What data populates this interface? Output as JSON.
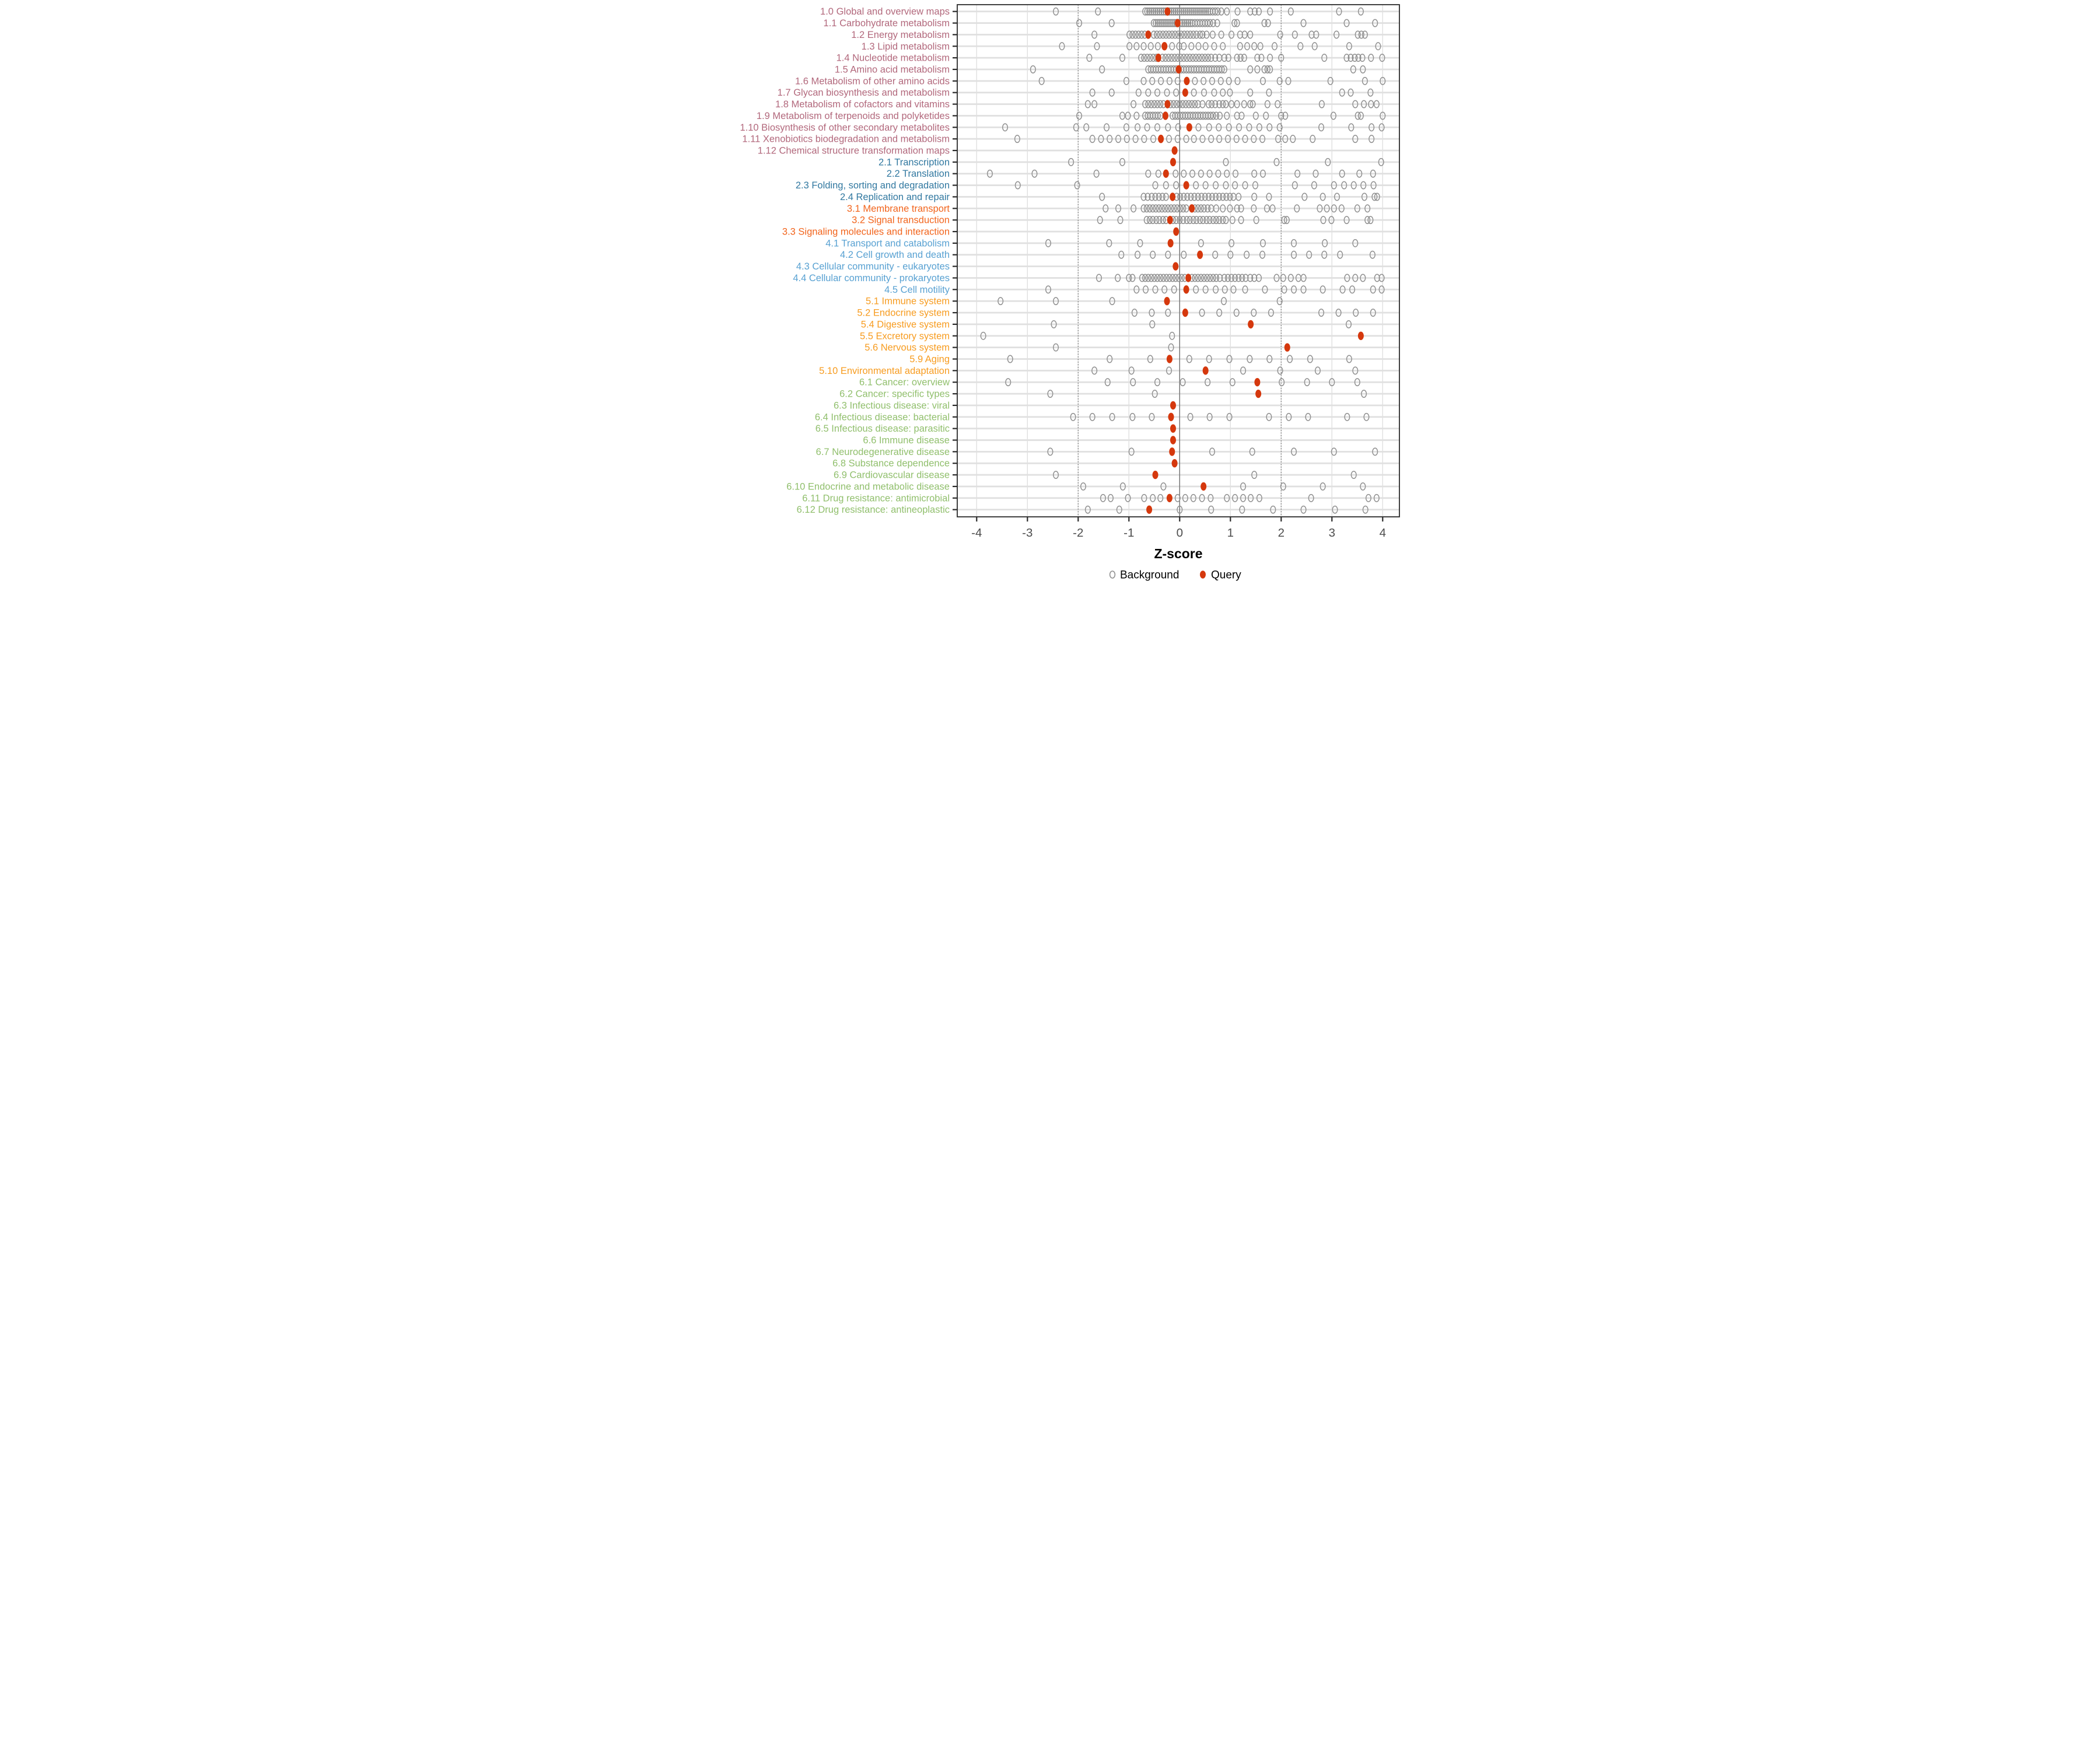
{
  "chart_data": {
    "type": "scatter",
    "title": "",
    "xlabel": "Z-score",
    "ylabel": "",
    "xlim": [
      -4.38,
      4.33
    ],
    "xticks": [
      -4,
      -3,
      -2,
      -1,
      0,
      1,
      2,
      3,
      4
    ],
    "grid": "on",
    "reference_lines": {
      "solid_at": 0,
      "dashed_at": [
        -2,
        2
      ]
    },
    "legend_position": "bottom",
    "legend": [
      {
        "label": "Background",
        "marker": "open-circle",
        "color": "#909090"
      },
      {
        "label": "Query",
        "marker": "filled-circle",
        "color": "#d5380d"
      }
    ],
    "colors": {
      "panel_border": "#2b2b2b",
      "grid": "#e0e0e0",
      "reference": "#707070",
      "tick_label": "#4d4d4d",
      "axis_title": "#000000",
      "background_dot": "#909090",
      "query_dot": "#d5380d",
      "group_colors": {
        "1": "#b2687c",
        "2": "#3178a0",
        "3": "#f2641c",
        "4": "#58a1d2",
        "5": "#f79c20",
        "6": "#90bf6c"
      }
    },
    "rows": [
      {
        "label": "1.0 Global and overview maps",
        "group": "1",
        "query": -0.24,
        "background": [
          -2.44,
          -1.61,
          -0.68,
          -0.64,
          -0.6,
          -0.56,
          -0.52,
          -0.48,
          -0.44,
          -0.4,
          -0.36,
          -0.32,
          -0.28,
          -0.2,
          -0.16,
          -0.12,
          -0.08,
          -0.04,
          0,
          0.04,
          0.08,
          0.12,
          0.16,
          0.2,
          0.24,
          0.28,
          0.32,
          0.36,
          0.4,
          0.44,
          0.48,
          0.52,
          0.56,
          0.6,
          0.65,
          0.7,
          0.75,
          0.82,
          0.93,
          1.14,
          1.39,
          1.48,
          1.56,
          1.78,
          2.19,
          3.14,
          3.57
        ]
      },
      {
        "label": "1.1 Carbohydrate metabolism",
        "group": "1",
        "query": -0.04,
        "background": [
          -1.98,
          -1.34,
          -0.51,
          -0.47,
          -0.43,
          -0.39,
          -0.35,
          -0.31,
          -0.27,
          -0.23,
          -0.19,
          -0.15,
          -0.11,
          -0.07,
          0.01,
          0.05,
          0.09,
          0.13,
          0.17,
          0.21,
          0.25,
          0.3,
          0.35,
          0.4,
          0.45,
          0.5,
          0.55,
          0.6,
          0.66,
          0.74,
          1.08,
          1.13,
          1.67,
          1.74,
          2.44,
          3.29,
          3.85
        ]
      },
      {
        "label": "1.2 Energy metabolism",
        "group": "1",
        "query": -0.62,
        "background": [
          -1.68,
          -0.99,
          -0.93,
          -0.87,
          -0.81,
          -0.75,
          -0.69,
          -0.51,
          -0.45,
          -0.39,
          -0.33,
          -0.27,
          -0.21,
          -0.15,
          -0.09,
          -0.03,
          0.03,
          0.09,
          0.15,
          0.21,
          0.27,
          0.33,
          0.4,
          0.45,
          0.53,
          0.65,
          0.82,
          1.02,
          1.19,
          1.28,
          1.39,
          1.98,
          2.27,
          2.6,
          2.69,
          3.09,
          3.51,
          3.58,
          3.65
        ]
      },
      {
        "label": "1.3 Lipid metabolism",
        "group": "1",
        "query": -0.3,
        "background": [
          -2.32,
          -1.63,
          -0.99,
          -0.85,
          -0.71,
          -0.57,
          -0.43,
          -0.15,
          -0.01,
          0.08,
          0.23,
          0.37,
          0.51,
          0.68,
          0.85,
          1.19,
          1.33,
          1.47,
          1.59,
          1.87,
          2.38,
          2.66,
          3.34,
          3.91
        ]
      },
      {
        "label": "1.4 Nucleotide metabolism",
        "group": "1",
        "query": -0.42,
        "background": [
          -1.78,
          -1.13,
          -0.76,
          -0.7,
          -0.64,
          -0.58,
          -0.52,
          -0.46,
          -0.34,
          -0.28,
          -0.22,
          -0.16,
          -0.1,
          -0.04,
          0.02,
          0.08,
          0.14,
          0.2,
          0.26,
          0.32,
          0.38,
          0.44,
          0.5,
          0.56,
          0.62,
          0.7,
          0.78,
          0.88,
          0.96,
          1.13,
          1.2,
          1.27,
          1.53,
          1.61,
          1.78,
          2.0,
          2.85,
          3.29,
          3.37,
          3.45,
          3.52,
          3.6,
          3.77,
          3.99
        ]
      },
      {
        "label": "1.5 Amino acid metabolism",
        "group": "1",
        "query": -0.02,
        "background": [
          -2.89,
          -1.53,
          -0.62,
          -0.57,
          -0.52,
          -0.47,
          -0.42,
          -0.37,
          -0.32,
          -0.27,
          -0.22,
          -0.17,
          -0.12,
          -0.07,
          0.03,
          0.08,
          0.13,
          0.18,
          0.23,
          0.28,
          0.33,
          0.38,
          0.43,
          0.48,
          0.53,
          0.58,
          0.63,
          0.68,
          0.73,
          0.78,
          0.83,
          0.88,
          1.39,
          1.53,
          1.67,
          1.73,
          1.78,
          3.42,
          3.61
        ]
      },
      {
        "label": "1.6 Metabolism of other amino acids",
        "group": "1",
        "query": 0.14,
        "background": [
          -2.72,
          -1.05,
          -0.71,
          -0.54,
          -0.37,
          -0.2,
          -0.04,
          0.3,
          0.47,
          0.64,
          0.81,
          0.97,
          1.14,
          1.64,
          1.97,
          2.14,
          2.97,
          3.65,
          4.0
        ]
      },
      {
        "label": "1.7 Glycan biosynthesis and metabolism",
        "group": "1",
        "query": 0.11,
        "background": [
          -1.72,
          -1.34,
          -0.81,
          -0.62,
          -0.44,
          -0.25,
          -0.07,
          0.28,
          0.48,
          0.68,
          0.85,
          0.99,
          1.39,
          1.76,
          3.2,
          3.37,
          3.76
        ]
      },
      {
        "label": "1.8 Metabolism of cofactors and vitamins",
        "group": "1",
        "query": -0.24,
        "background": [
          -1.81,
          -1.68,
          -0.91,
          -0.68,
          -0.62,
          -0.56,
          -0.5,
          -0.44,
          -0.38,
          -0.32,
          -0.18,
          -0.12,
          -0.06,
          0,
          0.06,
          0.12,
          0.18,
          0.24,
          0.3,
          0.36,
          0.45,
          0.57,
          0.63,
          0.7,
          0.78,
          0.85,
          0.91,
          1.02,
          1.13,
          1.27,
          1.39,
          1.44,
          1.73,
          1.93,
          2.8,
          3.46,
          3.63,
          3.77,
          3.88
        ]
      },
      {
        "label": "1.9 Metabolism of terpenoids and polyketides",
        "group": "1",
        "query": -0.28,
        "background": [
          -1.98,
          -1.13,
          -1.02,
          -0.85,
          -0.68,
          -0.63,
          -0.58,
          -0.53,
          -0.48,
          -0.43,
          -0.38,
          -0.14,
          -0.09,
          -0.04,
          0.01,
          0.06,
          0.11,
          0.16,
          0.21,
          0.26,
          0.31,
          0.36,
          0.41,
          0.46,
          0.51,
          0.56,
          0.61,
          0.66,
          0.72,
          0.79,
          0.93,
          1.13,
          1.22,
          1.5,
          1.7,
          2.0,
          2.08,
          3.03,
          3.51,
          3.57,
          4.0
        ]
      },
      {
        "label": "1.10 Biosynthesis of other secondary metabolites",
        "group": "1",
        "query": 0.19,
        "background": [
          -3.44,
          -2.04,
          -1.84,
          -1.44,
          -1.05,
          -0.83,
          -0.64,
          -0.44,
          -0.23,
          -0.03,
          0.37,
          0.58,
          0.77,
          0.97,
          1.17,
          1.37,
          1.57,
          1.77,
          1.97,
          2.79,
          3.38,
          3.78,
          3.98
        ]
      },
      {
        "label": "1.11 Xenobiotics biodegradation and metabolism",
        "group": "1",
        "query": -0.37,
        "background": [
          -3.2,
          -1.72,
          -1.55,
          -1.38,
          -1.21,
          -1.04,
          -0.87,
          -0.7,
          -0.52,
          -0.21,
          -0.04,
          0.13,
          0.28,
          0.45,
          0.62,
          0.78,
          0.95,
          1.12,
          1.29,
          1.46,
          1.63,
          1.94,
          2.08,
          2.23,
          2.62,
          3.46,
          3.78
        ]
      },
      {
        "label": "1.12 Chemical structure transformation maps",
        "group": "1",
        "query": -0.1,
        "background": []
      },
      {
        "label": "2.1 Transcription",
        "group": "2",
        "query": -0.13,
        "background": [
          -2.14,
          -1.13,
          0.91,
          1.91,
          2.92,
          3.97
        ]
      },
      {
        "label": "2.2 Translation",
        "group": "2",
        "query": -0.27,
        "background": [
          -3.74,
          -2.86,
          -1.64,
          -0.62,
          -0.42,
          -0.08,
          0.08,
          0.25,
          0.42,
          0.59,
          0.76,
          0.93,
          1.1,
          1.47,
          1.64,
          2.32,
          2.68,
          3.2,
          3.54,
          3.81
        ]
      },
      {
        "label": "2.3 Folding, sorting and degradation",
        "group": "2",
        "query": 0.13,
        "background": [
          -3.19,
          -2.02,
          -0.48,
          -0.27,
          -0.07,
          0.32,
          0.51,
          0.71,
          0.91,
          1.09,
          1.29,
          1.49,
          2.27,
          2.65,
          3.04,
          3.24,
          3.43,
          3.62,
          3.82
        ]
      },
      {
        "label": "2.4 Replication and repair",
        "group": "2",
        "query": -0.14,
        "background": [
          -1.53,
          -0.71,
          -0.63,
          -0.55,
          -0.48,
          -0.41,
          -0.34,
          -0.27,
          -0.06,
          0.01,
          0.08,
          0.15,
          0.22,
          0.29,
          0.36,
          0.43,
          0.5,
          0.57,
          0.64,
          0.71,
          0.78,
          0.85,
          0.92,
          0.99,
          1.06,
          1.16,
          1.47,
          1.76,
          2.46,
          2.82,
          3.1,
          3.64,
          3.84,
          3.89
        ]
      },
      {
        "label": "3.1 Membrane transport",
        "group": "3",
        "query": 0.24,
        "background": [
          -1.46,
          -1.21,
          -0.91,
          -0.71,
          -0.65,
          -0.59,
          -0.53,
          -0.47,
          -0.41,
          -0.35,
          -0.29,
          -0.23,
          -0.17,
          -0.11,
          -0.05,
          0.01,
          0.07,
          0.13,
          0.3,
          0.36,
          0.42,
          0.48,
          0.55,
          0.62,
          0.72,
          0.85,
          0.99,
          1.13,
          1.21,
          1.46,
          1.72,
          1.83,
          2.31,
          2.76,
          2.9,
          3.04,
          3.19,
          3.5,
          3.7
        ]
      },
      {
        "label": "3.2 Signal transduction",
        "group": "3",
        "query": -0.19,
        "background": [
          -1.57,
          -1.17,
          -0.65,
          -0.59,
          -0.53,
          -0.46,
          -0.4,
          -0.33,
          -0.27,
          -0.13,
          -0.07,
          0.0,
          0.07,
          0.14,
          0.2,
          0.27,
          0.33,
          0.4,
          0.46,
          0.53,
          0.59,
          0.66,
          0.72,
          0.78,
          0.85,
          0.91,
          1.04,
          1.21,
          1.51,
          2.06,
          2.11,
          2.83,
          2.99,
          3.29,
          3.7,
          3.76
        ]
      },
      {
        "label": "3.3 Signaling molecules and interaction",
        "group": "3",
        "query": -0.07,
        "background": []
      },
      {
        "label": "4.1 Transport and catabolism",
        "group": "4",
        "query": -0.18,
        "background": [
          -2.59,
          -1.39,
          -0.78,
          0.42,
          1.02,
          1.64,
          2.25,
          2.86,
          3.46
        ]
      },
      {
        "label": "4.2 Cell growth and death",
        "group": "4",
        "query": 0.4,
        "background": [
          -1.15,
          -0.83,
          -0.53,
          -0.23,
          0.08,
          0.7,
          1.0,
          1.32,
          1.63,
          2.25,
          2.55,
          2.85,
          3.16,
          3.8
        ]
      },
      {
        "label": "4.3 Cellular community - eukaryotes",
        "group": "4",
        "query": -0.08,
        "background": []
      },
      {
        "label": "4.4 Cellular community - prokaryotes",
        "group": "4",
        "query": 0.17,
        "background": [
          -1.59,
          -1.22,
          -1.0,
          -0.93,
          -0.74,
          -0.68,
          -0.62,
          -0.56,
          -0.5,
          -0.44,
          -0.38,
          -0.32,
          -0.26,
          -0.2,
          -0.14,
          -0.08,
          -0.02,
          0.04,
          0.1,
          0.24,
          0.3,
          0.36,
          0.42,
          0.48,
          0.54,
          0.6,
          0.66,
          0.72,
          0.79,
          0.88,
          0.95,
          1.02,
          1.09,
          1.16,
          1.23,
          1.3,
          1.39,
          1.47,
          1.56,
          1.91,
          2.04,
          2.19,
          2.34,
          2.44,
          3.3,
          3.46,
          3.61,
          3.89,
          3.98
        ]
      },
      {
        "label": "4.5 Cell motility",
        "group": "4",
        "query": 0.13,
        "background": [
          -2.59,
          -0.85,
          -0.67,
          -0.48,
          -0.3,
          -0.11,
          0.32,
          0.51,
          0.71,
          0.89,
          1.06,
          1.29,
          1.68,
          2.06,
          2.25,
          2.44,
          2.82,
          3.21,
          3.4,
          3.81,
          3.98
        ]
      },
      {
        "label": "5.1 Immune system",
        "group": "5",
        "query": -0.25,
        "background": [
          -3.53,
          -2.44,
          -1.33,
          0.87,
          1.97
        ]
      },
      {
        "label": "5.2 Endocrine system",
        "group": "5",
        "query": 0.11,
        "background": [
          -0.89,
          -0.55,
          -0.23,
          0.44,
          0.78,
          1.12,
          1.46,
          1.8,
          2.79,
          3.13,
          3.47,
          3.81
        ]
      },
      {
        "label": "5.4 Digestive system",
        "group": "5",
        "query": 1.4,
        "background": [
          -2.48,
          -0.54,
          3.33
        ]
      },
      {
        "label": "5.5 Excretory system",
        "group": "5",
        "query": 3.57,
        "background": [
          -3.87,
          -0.15
        ]
      },
      {
        "label": "5.6 Nervous system",
        "group": "5",
        "query": 2.12,
        "background": [
          -2.44,
          -0.17
        ]
      },
      {
        "label": "5.9 Aging",
        "group": "5",
        "query": -0.2,
        "background": [
          -3.34,
          -1.38,
          -0.58,
          0.19,
          0.58,
          0.98,
          1.38,
          1.77,
          2.17,
          2.57,
          3.34
        ]
      },
      {
        "label": "5.10 Environmental adaptation",
        "group": "5",
        "query": 0.51,
        "background": [
          -1.68,
          -0.95,
          -0.21,
          1.25,
          1.98,
          2.72,
          3.46
        ]
      },
      {
        "label": "6.1 Cancer: overview",
        "group": "6",
        "query": 1.53,
        "background": [
          -3.38,
          -1.42,
          -0.92,
          -0.44,
          0.06,
          0.55,
          1.04,
          2.01,
          2.51,
          3.0,
          3.5
        ]
      },
      {
        "label": "6.2 Cancer: specific types",
        "group": "6",
        "query": 1.55,
        "background": [
          -2.55,
          -0.49,
          3.63
        ]
      },
      {
        "label": "6.3 Infectious disease: viral",
        "group": "6",
        "query": -0.13,
        "background": []
      },
      {
        "label": "6.4 Infectious disease: bacterial",
        "group": "6",
        "query": -0.17,
        "background": [
          -2.1,
          -1.72,
          -1.33,
          -0.93,
          -0.55,
          0.21,
          0.59,
          0.98,
          1.76,
          2.15,
          2.53,
          3.3,
          3.68
        ]
      },
      {
        "label": "6.5 Infectious disease: parasitic",
        "group": "6",
        "query": -0.13,
        "background": []
      },
      {
        "label": "6.6 Immune disease",
        "group": "6",
        "query": -0.13,
        "background": []
      },
      {
        "label": "6.7 Neurodegenerative disease",
        "group": "6",
        "query": -0.15,
        "background": [
          -2.55,
          -0.95,
          0.64,
          1.43,
          2.25,
          3.04,
          3.85
        ]
      },
      {
        "label": "6.8 Substance dependence",
        "group": "6",
        "query": -0.1,
        "background": []
      },
      {
        "label": "6.9 Cardiovascular disease",
        "group": "6",
        "query": -0.48,
        "background": [
          -2.44,
          1.47,
          3.43
        ]
      },
      {
        "label": "6.10 Endocrine and metabolic disease",
        "group": "6",
        "query": 0.47,
        "background": [
          -1.9,
          -1.12,
          -0.32,
          1.25,
          2.04,
          2.82,
          3.61
        ]
      },
      {
        "label": "6.11 Drug resistance: antimicrobial",
        "group": "6",
        "query": -0.2,
        "background": [
          -1.51,
          -1.36,
          -1.02,
          -0.7,
          -0.53,
          -0.38,
          -0.04,
          0.11,
          0.27,
          0.44,
          0.61,
          0.93,
          1.09,
          1.25,
          1.4,
          1.57,
          2.59,
          3.72,
          3.88
        ]
      },
      {
        "label": "6.12 Drug resistance: antineoplastic",
        "group": "6",
        "query": -0.6,
        "background": [
          -1.81,
          -1.19,
          0.0,
          0.62,
          1.23,
          1.84,
          2.44,
          3.06,
          3.66
        ]
      }
    ]
  }
}
